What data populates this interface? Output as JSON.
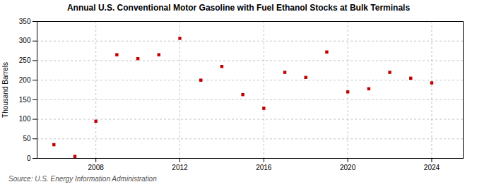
{
  "chart_data": {
    "type": "scatter",
    "title": "Annual U.S. Conventional Motor Gasoline with Fuel Ethanol Stocks at Bulk Terminals",
    "ylabel": "Thousand Barrels",
    "annotations": [
      "Source: U.S. Energy Information Administration"
    ],
    "x": [
      2006,
      2007,
      2008,
      2009,
      2010,
      2011,
      2012,
      2013,
      2014,
      2015,
      2016,
      2017,
      2018,
      2019,
      2020,
      2021,
      2022,
      2023,
      2024
    ],
    "values": [
      35,
      5,
      95,
      265,
      255,
      265,
      307,
      200,
      235,
      163,
      128,
      220,
      207,
      272,
      170,
      178,
      220,
      205,
      193
    ],
    "color": "#c00000",
    "marker": "square",
    "xlim": [
      2005.2,
      2025.5
    ],
    "xticks": [
      2008,
      2012,
      2016,
      2020,
      2024
    ],
    "ylim": [
      0,
      350
    ],
    "yticks": [
      0,
      50,
      100,
      150,
      200,
      250,
      300,
      350
    ],
    "grid": true
  }
}
